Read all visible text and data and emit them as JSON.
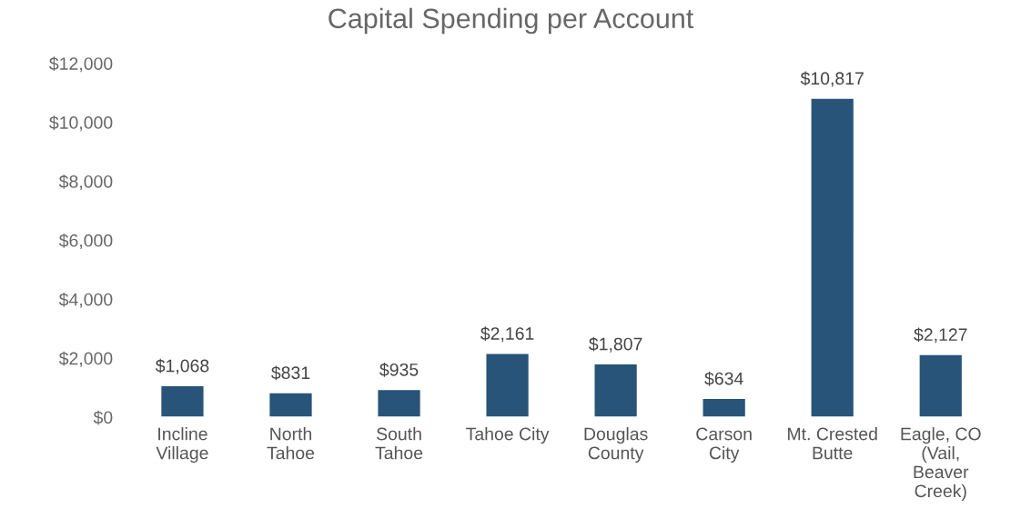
{
  "chart_data": {
    "type": "bar",
    "title": "Capital Spending per Account",
    "categories": [
      "Incline\nVillage",
      "North\nTahoe",
      "South\nTahoe",
      "Tahoe City",
      "Douglas\nCounty",
      "Carson\nCity",
      "Mt. Crested\nButte",
      "Eagle, CO\n(Vail,\nBeaver\nCreek)"
    ],
    "values": [
      1068,
      831,
      935,
      2161,
      1807,
      634,
      10817,
      2127
    ],
    "value_labels": [
      "$1,068",
      "$831",
      "$935",
      "$2,161",
      "$1,807",
      "$634",
      "$10,817",
      "$2,127"
    ],
    "color": "#275478",
    "ylim": [
      0,
      12000
    ],
    "yticks": [
      {
        "value": 0,
        "label": "$0"
      },
      {
        "value": 2000,
        "label": "$2,000"
      },
      {
        "value": 4000,
        "label": "$4,000"
      },
      {
        "value": 6000,
        "label": "$6,000"
      },
      {
        "value": 8000,
        "label": "$8,000"
      },
      {
        "value": 10000,
        "label": "$10,000"
      },
      {
        "value": 12000,
        "label": "$12,000"
      }
    ],
    "grid": false,
    "legend": false
  }
}
